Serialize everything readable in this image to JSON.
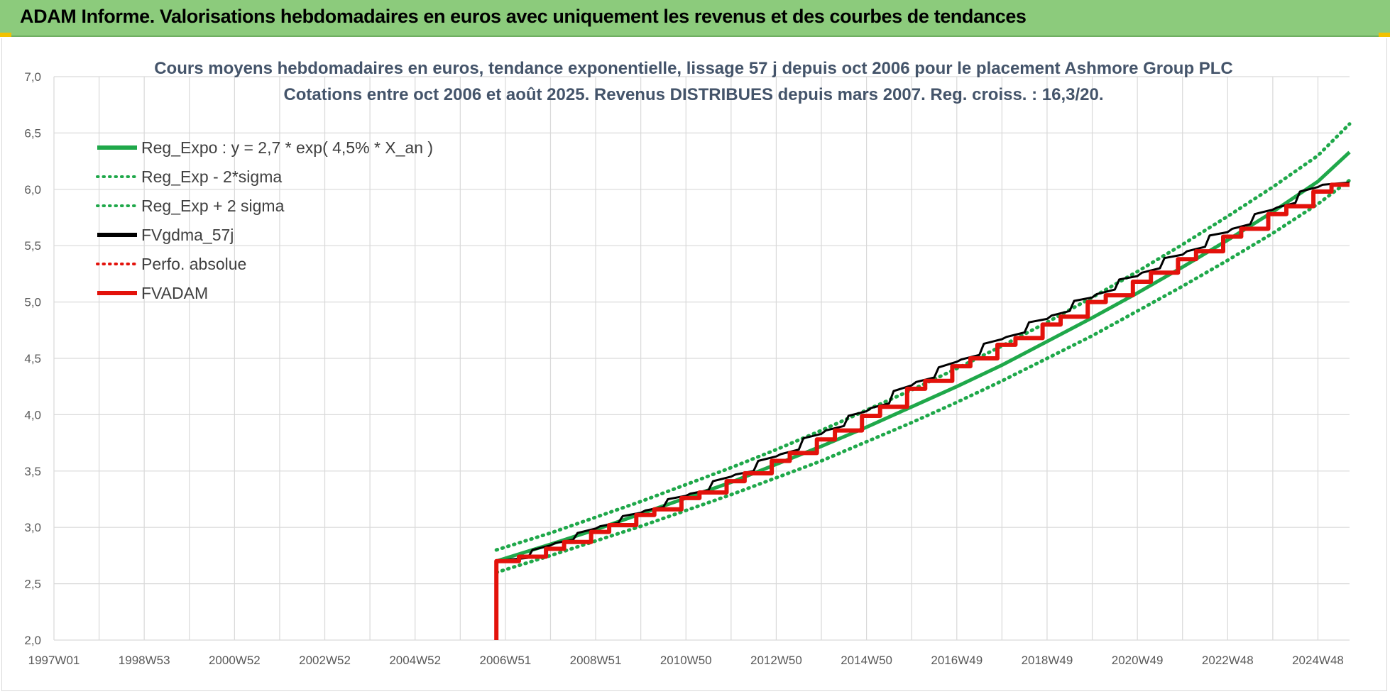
{
  "header": {
    "title": "ADAM Informe. Valorisations hebdomadaires en euros avec uniquement les revenus et des courbes de tendances"
  },
  "colors": {
    "header_bg": "#8ccb7c",
    "green": "#1fa84a",
    "black": "#000000",
    "red": "#e3120b",
    "title": "#44546a"
  },
  "chart_data": {
    "type": "line",
    "title": [
      "Cours moyens hebdomadaires en euros, tendance exponentielle, lissage 57 j depuis oct 2006 pour le placement Ashmore Group PLC",
      "Cotations entre oct 2006 et août 2025. Revenus DISTRIBUES depuis mars 2007. Reg. croiss. : 16,3/20."
    ],
    "xlabel": "",
    "ylabel": "",
    "x_range": [
      1997.0,
      2025.7
    ],
    "ylim": [
      2.0,
      7.0
    ],
    "y_ticks": [
      2.0,
      2.5,
      3.0,
      3.5,
      4.0,
      4.5,
      5.0,
      5.5,
      6.0,
      6.5,
      7.0
    ],
    "y_tick_labels": [
      "2,0",
      "2,5",
      "3,0",
      "3,5",
      "4,0",
      "4,5",
      "5,0",
      "5,5",
      "6,0",
      "6,5",
      "7,0"
    ],
    "x_ticks": [
      {
        "label": "1997W01",
        "x": 1997.0
      },
      {
        "label": "1998W53",
        "x": 1999.0
      },
      {
        "label": "2000W52",
        "x": 2001.0
      },
      {
        "label": "2002W52",
        "x": 2003.0
      },
      {
        "label": "2004W52",
        "x": 2005.0
      },
      {
        "label": "2006W51",
        "x": 2007.0
      },
      {
        "label": "2008W51",
        "x": 2009.0
      },
      {
        "label": "2010W50",
        "x": 2011.0
      },
      {
        "label": "2012W50",
        "x": 2013.0
      },
      {
        "label": "2014W50",
        "x": 2015.0
      },
      {
        "label": "2016W49",
        "x": 2017.0
      },
      {
        "label": "2018W49",
        "x": 2019.0
      },
      {
        "label": "2020W49",
        "x": 2021.0
      },
      {
        "label": "2022W48",
        "x": 2023.0
      },
      {
        "label": "2024W48",
        "x": 2025.0
      }
    ],
    "grid": true,
    "legend_position": "top-left",
    "series": [
      {
        "name": "Reg_Expo : y = 2,7 * exp( 4,5% *  X_an )",
        "style": "solid",
        "color": "#1fa84a",
        "x": [
          2006.8,
          2008.0,
          2009.0,
          2010.0,
          2011.0,
          2012.0,
          2013.0,
          2014.0,
          2015.0,
          2016.0,
          2017.0,
          2018.0,
          2019.0,
          2020.0,
          2021.0,
          2022.0,
          2023.0,
          2024.0,
          2025.0,
          2025.7
        ],
        "y": [
          2.7,
          2.85,
          2.98,
          3.12,
          3.26,
          3.4,
          3.56,
          3.72,
          3.89,
          4.07,
          4.25,
          4.44,
          4.65,
          4.86,
          5.08,
          5.31,
          5.55,
          5.8,
          6.07,
          6.33
        ]
      },
      {
        "name": "Reg_Exp - 2*sigma",
        "style": "dotted",
        "color": "#1fa84a",
        "x": [
          2006.8,
          2008.0,
          2009.0,
          2010.0,
          2011.0,
          2012.0,
          2013.0,
          2014.0,
          2015.0,
          2016.0,
          2017.0,
          2018.0,
          2019.0,
          2020.0,
          2021.0,
          2022.0,
          2023.0,
          2024.0,
          2025.0,
          2025.7
        ],
        "y": [
          2.6,
          2.75,
          2.88,
          3.01,
          3.15,
          3.29,
          3.44,
          3.59,
          3.76,
          3.93,
          4.11,
          4.3,
          4.5,
          4.7,
          4.92,
          5.14,
          5.37,
          5.61,
          5.87,
          6.08
        ]
      },
      {
        "name": "Reg_Exp + 2 sigma",
        "style": "dotted",
        "color": "#1fa84a",
        "x": [
          2006.8,
          2008.0,
          2009.0,
          2010.0,
          2011.0,
          2012.0,
          2013.0,
          2014.0,
          2015.0,
          2016.0,
          2017.0,
          2018.0,
          2019.0,
          2020.0,
          2021.0,
          2022.0,
          2023.0,
          2024.0,
          2025.0,
          2025.7
        ],
        "y": [
          2.8,
          2.95,
          3.09,
          3.23,
          3.38,
          3.53,
          3.69,
          3.86,
          4.04,
          4.22,
          4.41,
          4.61,
          4.82,
          5.04,
          5.27,
          5.51,
          5.76,
          6.02,
          6.3,
          6.58
        ]
      },
      {
        "name": "FVgdma_57j",
        "style": "solid",
        "color": "#000000",
        "x": [
          2006.8,
          2006.8,
          2007.0,
          2007.5,
          2007.6,
          2008.0,
          2008.1,
          2008.5,
          2008.6,
          2009.0,
          2009.1,
          2009.5,
          2009.6,
          2010.0,
          2010.1,
          2010.5,
          2010.6,
          2011.0,
          2011.1,
          2011.5,
          2011.6,
          2012.0,
          2012.1,
          2012.5,
          2012.6,
          2013.0,
          2013.1,
          2013.5,
          2013.6,
          2014.0,
          2014.1,
          2014.5,
          2014.6,
          2015.0,
          2015.1,
          2015.5,
          2015.6,
          2016.0,
          2016.1,
          2016.5,
          2016.6,
          2017.0,
          2017.1,
          2017.5,
          2017.6,
          2018.0,
          2018.1,
          2018.5,
          2018.6,
          2019.0,
          2019.1,
          2019.5,
          2019.6,
          2020.0,
          2020.1,
          2020.5,
          2020.6,
          2021.0,
          2021.1,
          2021.5,
          2021.6,
          2022.0,
          2022.1,
          2022.5,
          2022.6,
          2023.0,
          2023.1,
          2023.5,
          2023.6,
          2024.0,
          2024.1,
          2024.5,
          2024.6,
          2025.0,
          2025.1,
          2025.7
        ],
        "y": [
          2.0,
          2.7,
          2.71,
          2.73,
          2.8,
          2.84,
          2.86,
          2.89,
          2.95,
          2.99,
          3.01,
          3.04,
          3.1,
          3.13,
          3.15,
          3.18,
          3.25,
          3.28,
          3.3,
          3.33,
          3.41,
          3.45,
          3.47,
          3.5,
          3.59,
          3.63,
          3.65,
          3.69,
          3.79,
          3.83,
          3.86,
          3.9,
          3.99,
          4.03,
          4.06,
          4.1,
          4.21,
          4.26,
          4.29,
          4.33,
          4.42,
          4.47,
          4.49,
          4.53,
          4.63,
          4.67,
          4.69,
          4.73,
          4.82,
          4.85,
          4.88,
          4.92,
          5.01,
          5.04,
          5.07,
          5.11,
          5.2,
          5.23,
          5.26,
          5.3,
          5.39,
          5.42,
          5.45,
          5.49,
          5.59,
          5.62,
          5.65,
          5.69,
          5.78,
          5.82,
          5.84,
          5.88,
          5.98,
          6.02,
          6.04,
          6.06
        ]
      },
      {
        "name": "Perfo. absolue",
        "style": "dotted",
        "color": "#e3120b",
        "x": [],
        "y": []
      },
      {
        "name": "FVADAM",
        "style": "solid",
        "color": "#e3120b",
        "x": [
          2006.8,
          2006.8,
          2007.3,
          2007.3,
          2007.9,
          2007.9,
          2008.3,
          2008.3,
          2008.9,
          2008.9,
          2009.3,
          2009.3,
          2009.9,
          2009.9,
          2010.3,
          2010.3,
          2010.9,
          2010.9,
          2011.3,
          2011.3,
          2011.9,
          2011.9,
          2012.3,
          2012.3,
          2012.9,
          2012.9,
          2013.3,
          2013.3,
          2013.9,
          2013.9,
          2014.3,
          2014.3,
          2014.9,
          2014.9,
          2015.3,
          2015.3,
          2015.9,
          2015.9,
          2016.3,
          2016.3,
          2016.9,
          2016.9,
          2017.3,
          2017.3,
          2017.9,
          2017.9,
          2018.3,
          2018.3,
          2018.9,
          2018.9,
          2019.3,
          2019.3,
          2019.9,
          2019.9,
          2020.3,
          2020.3,
          2020.9,
          2020.9,
          2021.3,
          2021.3,
          2021.9,
          2021.9,
          2022.3,
          2022.3,
          2022.9,
          2022.9,
          2023.3,
          2023.3,
          2023.9,
          2023.9,
          2024.3,
          2024.3,
          2024.9,
          2024.9,
          2025.3,
          2025.3,
          2025.7
        ],
        "y": [
          2.0,
          2.7,
          2.7,
          2.74,
          2.74,
          2.81,
          2.81,
          2.87,
          2.87,
          2.96,
          2.96,
          3.02,
          3.02,
          3.11,
          3.11,
          3.16,
          3.16,
          3.26,
          3.26,
          3.31,
          3.31,
          3.41,
          3.41,
          3.48,
          3.48,
          3.59,
          3.59,
          3.66,
          3.66,
          3.78,
          3.78,
          3.86,
          3.86,
          3.99,
          3.99,
          4.07,
          4.07,
          4.23,
          4.23,
          4.3,
          4.3,
          4.43,
          4.43,
          4.5,
          4.5,
          4.62,
          4.62,
          4.68,
          4.68,
          4.8,
          4.8,
          4.87,
          4.87,
          5.0,
          5.0,
          5.06,
          5.06,
          5.18,
          5.18,
          5.26,
          5.26,
          5.38,
          5.38,
          5.45,
          5.45,
          5.58,
          5.58,
          5.65,
          5.65,
          5.78,
          5.78,
          5.85,
          5.85,
          5.98,
          5.98,
          6.04,
          6.04
        ]
      }
    ]
  }
}
